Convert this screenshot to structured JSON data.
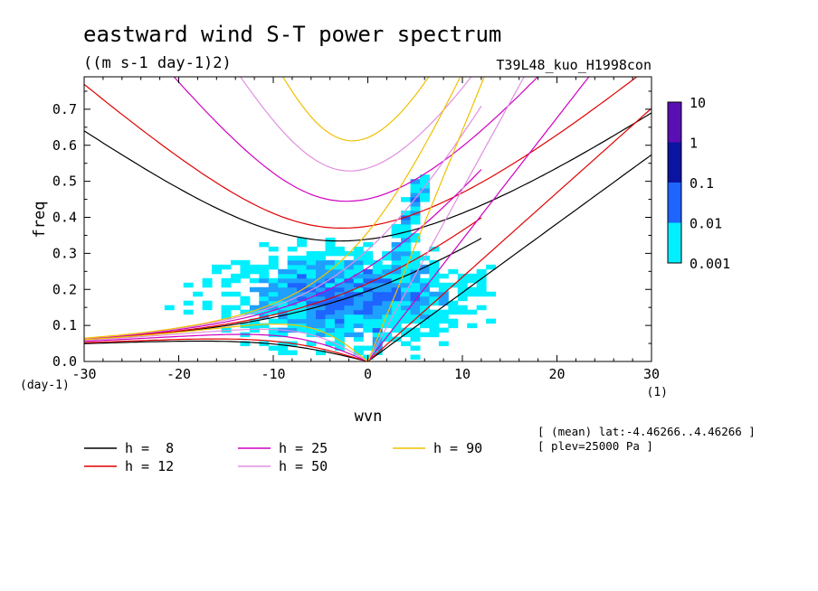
{
  "chart_data": {
    "type": "heatmap",
    "title": "eastward wind S-T power spectrum",
    "subtitle": "((m s-1 day-1)2)",
    "run_label": "T39L48_kuo_H1998con",
    "xlabel": "wvn",
    "ylabel": "freq",
    "x_unit": "(1)",
    "y_unit": "(day-1)",
    "xlim": [
      -30,
      30
    ],
    "ylim": [
      0,
      0.79
    ],
    "x_ticks": [
      -30,
      -20,
      -10,
      0,
      10,
      20,
      30
    ],
    "x_tick_labels": [
      "-30",
      "-20",
      "-10",
      "0",
      "10",
      "20",
      "30"
    ],
    "y_ticks": [
      0,
      0.1,
      0.2,
      0.3,
      0.4,
      0.5,
      0.6,
      0.7
    ],
    "y_tick_labels": [
      "0.0",
      "0.1",
      "0.2",
      "0.3",
      "0.4",
      "0.5",
      "0.6",
      "0.7"
    ],
    "colorbar": {
      "labels": [
        "10",
        "1",
        "0.1",
        "0.01",
        "0.001"
      ],
      "colors": [
        "#5a0fb4",
        "#0a14a0",
        "#1e64ff",
        "#1ea0ff",
        "#00f0ff"
      ],
      "levels": [
        0.001,
        0.01,
        0.1,
        1,
        10
      ]
    },
    "dispersion_curves": [
      {
        "label": "h =  8",
        "h": 8,
        "color": "#000000"
      },
      {
        "label": "h = 12",
        "h": 12,
        "color": "#e00000"
      },
      {
        "label": "h = 25",
        "h": 25,
        "color": "#d000c0"
      },
      {
        "label": "h = 50",
        "h": 50,
        "color": "#e090e0"
      },
      {
        "label": "h = 90",
        "h": 90,
        "color": "#f0c000"
      }
    ],
    "annotations": [
      "[ (mean) lat:-4.46266..4.46266 ]",
      "[ plev=25000 Pa ]"
    ],
    "power_regions": [
      {
        "level": 0.001,
        "x": [
          -28,
          13
        ],
        "y": [
          0.02,
          0.5
        ],
        "note": "broad cyan region"
      },
      {
        "level": 0.01,
        "x": [
          -9,
          7
        ],
        "y": [
          0.05,
          0.28
        ]
      },
      {
        "level": 0.1,
        "x": [
          -5,
          4
        ],
        "y": [
          0.03,
          0.16
        ]
      }
    ]
  }
}
